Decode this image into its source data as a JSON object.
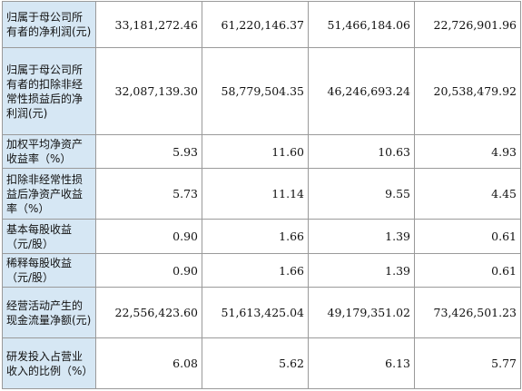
{
  "rows": [
    {
      "label": "归属于母公司所有者的净利润(元)",
      "values": [
        "33,181,272.46",
        "61,220,146.37",
        "51,466,184.06",
        "22,726,901.96"
      ]
    },
    {
      "label": "归属于母公司所有者的扣除非经常性损益后的净利润(元)",
      "values": [
        "32,087,139.30",
        "58,779,504.35",
        "46,246,693.24",
        "20,538,479.92"
      ]
    },
    {
      "label": "加权平均净资产收益率（%）",
      "values": [
        "5.93",
        "11.60",
        "10.63",
        "4.93"
      ]
    },
    {
      "label": "扣除非经常性损益后净资产收益率（%）",
      "values": [
        "5.73",
        "11.14",
        "9.55",
        "4.45"
      ]
    },
    {
      "label": "基本每股收益（元/股）",
      "values": [
        "0.90",
        "1.66",
        "1.39",
        "0.61"
      ]
    },
    {
      "label": "稀释每股收益（元/股）",
      "values": [
        "0.90",
        "1.66",
        "1.39",
        "0.61"
      ]
    },
    {
      "label": "经营活动产生的现金流量净额(元)",
      "values": [
        "22,556,423.60",
        "51,613,425.04",
        "49,179,351.02",
        "73,426,501.23"
      ]
    },
    {
      "label": "研发投入占营业收入的比例（%）",
      "values": [
        "6.08",
        "5.62",
        "6.13",
        "5.77"
      ]
    }
  ]
}
